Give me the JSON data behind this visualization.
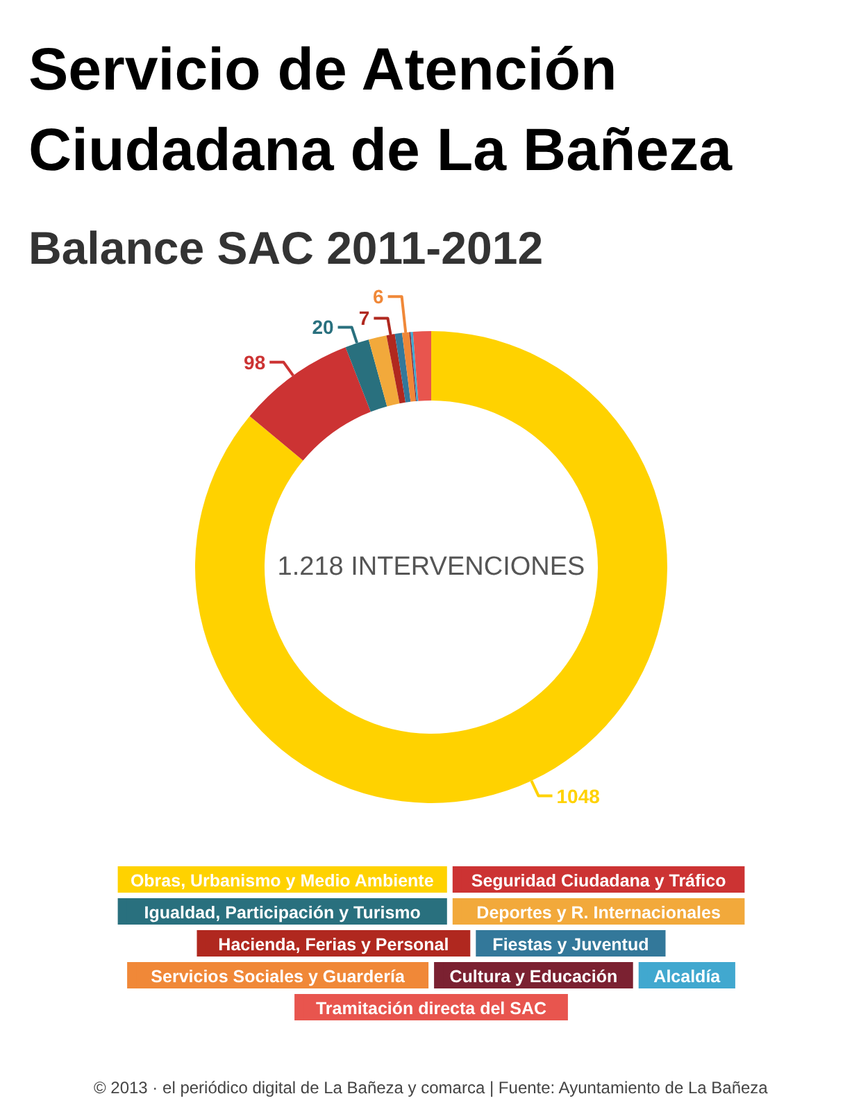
{
  "chart_data": {
    "type": "donut",
    "title": "Servicio de Atención Ciudadana de La Bañeza",
    "subtitle": "Balance SAC 2011-2012",
    "categories": [
      "Obras, Urbanismo y Medio Ambiente",
      "Seguridad Ciudadana y Tráfico",
      "Igualdad, Participación y Turismo",
      "Deportes y R. Internacionales",
      "Hacienda, Ferias y Personal",
      "Fiestas y Juventud",
      "Servicios Sociales y Guardería",
      "Cultura y Educación",
      "Alcaldía",
      "Tramitación directa del SAC"
    ],
    "values": [
      1048,
      98,
      20,
      15,
      7,
      6,
      6,
      1,
      2,
      15
    ],
    "colors": [
      "#ffd200",
      "#cc3333",
      "#29707e",
      "#f2a93b",
      "#b0281f",
      "#33789a",
      "#f08838",
      "#7b2131",
      "#41a8cf",
      "#e8554e"
    ],
    "value_labels": [
      "1048",
      "98",
      "20",
      null,
      "7",
      null,
      "6",
      null,
      null,
      null
    ],
    "legend": "bottom",
    "annotations": [
      "1.218 INTERVENCIONES",
      "© 2013 · el periódico digital de La Bañeza y comarca | Fuente: Ayuntamiento de La Bañeza"
    ]
  }
}
